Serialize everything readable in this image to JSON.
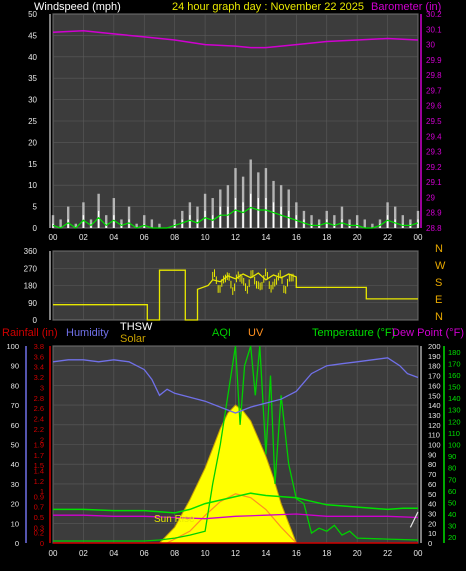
{
  "header": {
    "left_title": "Windspeed (mph)",
    "center_title": "24 hour graph day : November 22 2025",
    "right_title": "Barometer (in)"
  },
  "bottom_header": {
    "rainfall": "Rainfall (in)",
    "humidity": "Humidity",
    "thsw": "THSW",
    "solar": "Solar",
    "aqi": "AQI",
    "uv": "UV",
    "temperature": "Temperature (°F)",
    "dewpoint": "Dew Point (°F)"
  },
  "annotation": {
    "sunrise": "Sun Rise"
  },
  "colors": {
    "background": "#000000",
    "plot_bg": "#3c3c3c",
    "grid": "#5a5a5a",
    "frame": "#8a8a8a",
    "wind_avg": "#ffffff",
    "wind_gust": "#c8c8c8",
    "wind_green": "#00e000",
    "barometer": "#d000d0",
    "direction": "#e8e800",
    "humidity": "#7070e8",
    "temperature": "#00e000",
    "dewpoint": "#d000d0",
    "rainfall": "#d00000",
    "solar": "#ffff00",
    "uv": "#ff9020",
    "aqi": "#00d000",
    "header_yellow": "#e8e800"
  },
  "chart_data": [
    {
      "id": "wind_barometer",
      "type": "line",
      "x_ticks": [
        "00",
        "02",
        "04",
        "06",
        "08",
        "10",
        "12",
        "14",
        "16",
        "18",
        "20",
        "22",
        "00"
      ],
      "y_left_ticks": [
        "0",
        "5",
        "10",
        "15",
        "20",
        "25",
        "30",
        "35",
        "40",
        "45",
        "50"
      ],
      "y_left_range": [
        0,
        50
      ],
      "y_right_ticks": [
        "28.8",
        "28.9",
        "29",
        "29.1",
        "29.2",
        "29.3",
        "29.4",
        "29.5",
        "29.6",
        "29.7",
        "29.8",
        "29.9",
        "30",
        "30.1",
        "30.2"
      ],
      "y_right_range": [
        28.8,
        30.2
      ],
      "grid": true,
      "series": [
        {
          "role": "barometer",
          "hours": [
            0,
            2,
            4,
            6,
            8,
            10,
            12,
            13,
            14,
            15,
            16,
            18,
            20,
            22,
            24
          ],
          "values": [
            30.08,
            30.09,
            30.07,
            30.05,
            30.03,
            30.0,
            29.99,
            29.98,
            29.98,
            29.99,
            30.0,
            30.02,
            30.03,
            30.04,
            30.03
          ]
        },
        {
          "role": "wind",
          "hours": [
            0,
            0.5,
            1,
            1.5,
            2,
            2.5,
            3,
            3.5,
            4,
            4.5,
            5,
            5.5,
            6,
            6.5,
            7,
            7.5,
            8,
            8.5,
            9,
            9.5,
            10,
            10.5,
            11,
            11.5,
            12,
            12.5,
            13,
            13.5,
            14,
            14.5,
            15,
            15.5,
            16,
            16.5,
            17,
            17.5,
            18,
            18.5,
            19,
            19.5,
            20,
            20.5,
            21,
            21.5,
            22,
            22.5,
            23,
            23.5,
            24
          ],
          "gust": [
            3,
            2,
            5,
            1,
            6,
            2,
            8,
            3,
            7,
            2,
            5,
            1,
            3,
            2,
            1,
            0,
            2,
            4,
            6,
            5,
            8,
            7,
            9,
            10,
            14,
            12,
            16,
            13,
            14,
            11,
            10,
            9,
            6,
            4,
            3,
            2,
            4,
            3,
            5,
            2,
            3,
            2,
            1,
            2,
            6,
            5,
            3,
            2,
            4
          ],
          "avg": [
            1,
            0,
            2,
            0,
            3,
            1,
            4,
            1,
            3,
            1,
            2,
            0,
            1,
            0,
            0,
            0,
            1,
            2,
            3,
            2,
            4,
            3,
            5,
            5,
            7,
            6,
            8,
            7,
            7,
            6,
            5,
            4,
            3,
            2,
            1,
            1,
            2,
            1,
            2,
            1,
            1,
            0,
            0,
            1,
            3,
            2,
            1,
            1,
            2
          ]
        }
      ]
    },
    {
      "id": "wind_direction",
      "type": "line",
      "y_left_ticks": [
        "0",
        "90",
        "180",
        "270",
        "360"
      ],
      "y_left_range": [
        0,
        360
      ],
      "y_right_labels": [
        "N",
        "W",
        "S",
        "E",
        "N"
      ],
      "grid": true,
      "series": [
        {
          "role": "direction",
          "hours": [
            0,
            6.2,
            6.2,
            7,
            7,
            8.7,
            8.7,
            9.5,
            9.5,
            10.2,
            10.5,
            11,
            11.5,
            12,
            12.5,
            13,
            13.5,
            14,
            14.5,
            15,
            15.5,
            16,
            16,
            20.6,
            20.6,
            24
          ],
          "values": [
            80,
            80,
            0,
            0,
            260,
            260,
            0,
            0,
            160,
            180,
            210,
            200,
            230,
            215,
            240,
            220,
            245,
            210,
            235,
            220,
            240,
            225,
            170,
            170,
            110,
            110
          ]
        }
      ]
    },
    {
      "id": "multi_sensor",
      "type": "line",
      "x_ticks": [
        "00",
        "02",
        "04",
        "06",
        "08",
        "10",
        "12",
        "14",
        "16",
        "18",
        "20",
        "22",
        "00"
      ],
      "humidity_ticks": [
        "0",
        "10",
        "20",
        "30",
        "40",
        "50",
        "60",
        "70",
        "80",
        "90",
        "100"
      ],
      "humidity_range": [
        0,
        100
      ],
      "rain_ticks": [
        "0",
        "0.2",
        "0.3",
        "0.5",
        "0.7",
        "0.9",
        "1",
        "1.2",
        "1.4",
        "1.5",
        "1.7",
        "1.9",
        "2",
        "2.2",
        "2.4",
        "2.6",
        "2.8",
        "3",
        "3.2",
        "3.4",
        "3.6",
        "3.8"
      ],
      "rain_range": [
        0,
        3.8
      ],
      "aqi_ticks": [
        "0",
        "10",
        "20",
        "30",
        "40",
        "50",
        "60",
        "70",
        "80",
        "90",
        "100",
        "110",
        "120",
        "130",
        "140",
        "150",
        "160",
        "170",
        "180",
        "190",
        "200"
      ],
      "aqi_range": [
        0,
        200
      ],
      "temp_ticks": [
        "20",
        "30",
        "40",
        "50",
        "60",
        "70",
        "80",
        "90",
        "100",
        "110",
        "120",
        "130",
        "140",
        "150",
        "160",
        "170",
        "180"
      ],
      "temp_range": [
        15,
        185
      ],
      "grid": true,
      "series": [
        {
          "role": "humidity",
          "hours": [
            0,
            1,
            2,
            3,
            4,
            5,
            6,
            6.5,
            7,
            7.5,
            8,
            9,
            10,
            11,
            12,
            13,
            14,
            15,
            16,
            17,
            18,
            19,
            20,
            21,
            22,
            22.8,
            23.3,
            24
          ],
          "values": [
            92,
            93,
            93,
            92,
            93,
            92,
            88,
            83,
            75,
            78,
            76,
            74,
            72,
            69,
            66,
            69,
            71,
            73,
            77,
            86,
            90,
            91,
            92,
            93,
            94,
            90,
            86,
            84
          ]
        },
        {
          "role": "temperature",
          "hours": [
            0,
            2,
            4,
            6,
            7,
            8,
            9,
            10,
            11,
            12,
            13,
            14,
            15,
            16,
            17,
            18,
            19,
            20,
            21,
            22,
            23,
            24
          ],
          "values": [
            44,
            44,
            43,
            43,
            42,
            41,
            44,
            49,
            52,
            55,
            58,
            56,
            55,
            54,
            51,
            48,
            47,
            46,
            45,
            44,
            45,
            45
          ]
        },
        {
          "role": "dewpoint",
          "hours": [
            0,
            2,
            4,
            6,
            8,
            10,
            12,
            14,
            16,
            18,
            20,
            22,
            24
          ],
          "values": [
            39,
            39,
            38,
            38,
            37,
            36,
            38,
            39,
            40,
            38,
            38,
            38,
            37
          ]
        },
        {
          "role": "solar",
          "hours": [
            7,
            8,
            9,
            10,
            10.5,
            11,
            11.5,
            12,
            12.5,
            13,
            13.5,
            14,
            14.5,
            15,
            16
          ],
          "values": [
            0,
            8,
            22,
            38,
            48,
            58,
            66,
            70,
            67,
            62,
            53,
            44,
            33,
            20,
            0
          ]
        },
        {
          "role": "uv",
          "hours": [
            7.5,
            9,
            10,
            11,
            12,
            13,
            14,
            15,
            16
          ],
          "values": [
            0,
            6,
            14,
            21,
            25,
            23,
            17,
            8,
            0
          ]
        },
        {
          "role": "aqi",
          "hours": [
            0,
            6,
            7,
            8,
            9,
            10,
            10.5,
            11,
            11.5,
            12,
            12.3,
            12.6,
            13,
            13.3,
            13.6,
            14,
            14.3,
            14.6,
            15,
            15.5,
            16,
            16.5,
            17,
            17.5,
            18,
            18.5,
            19,
            19.5,
            20,
            22,
            24
          ],
          "values": [
            2,
            2,
            3,
            5,
            8,
            12,
            60,
            100,
            150,
            200,
            120,
            180,
            200,
            150,
            200,
            90,
            170,
            60,
            150,
            80,
            45,
            40,
            10,
            15,
            12,
            18,
            8,
            12,
            5,
            4,
            3
          ]
        },
        {
          "role": "rainfall",
          "hours": [
            0,
            24
          ],
          "values": [
            0,
            0
          ]
        },
        {
          "role": "thsw",
          "hours": [
            23.5,
            24
          ],
          "values": [
            0.3,
            0.6
          ]
        }
      ]
    }
  ]
}
